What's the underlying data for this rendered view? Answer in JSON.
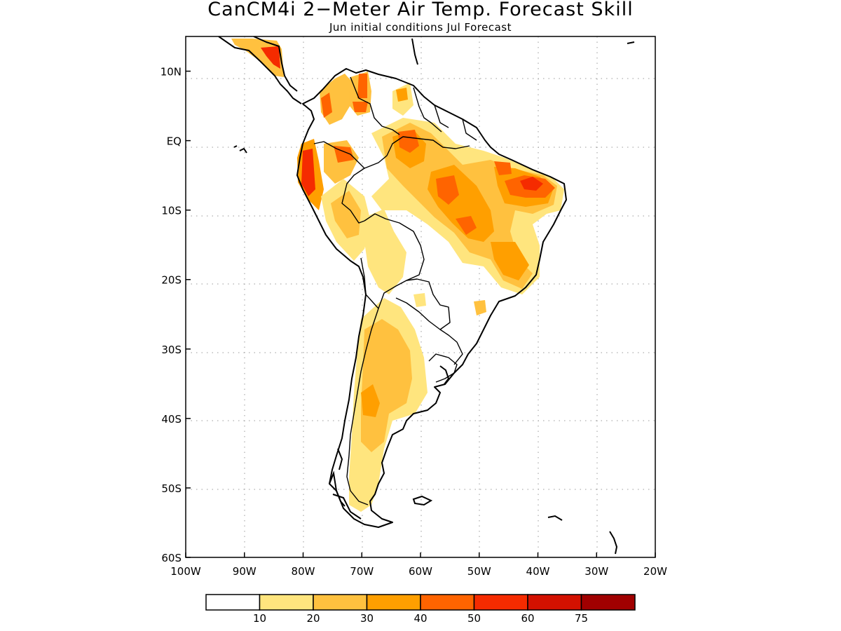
{
  "title": "CanCM4i 2−Meter Air Temp. Forecast Skill",
  "subtitle": "Jun initial conditions   Jul Forecast",
  "map": {
    "region": "South America",
    "lon_range": [
      -100,
      -20
    ],
    "lat_range": [
      -60,
      15
    ],
    "grid": true,
    "x_ticks": [
      {
        "value": -100,
        "label": "100W"
      },
      {
        "value": -90,
        "label": "90W"
      },
      {
        "value": -80,
        "label": "80W"
      },
      {
        "value": -70,
        "label": "70W"
      },
      {
        "value": -60,
        "label": "60W"
      },
      {
        "value": -50,
        "label": "50W"
      },
      {
        "value": -40,
        "label": "40W"
      },
      {
        "value": -30,
        "label": "30W"
      },
      {
        "value": -20,
        "label": "20W"
      }
    ],
    "y_ticks": [
      {
        "value": 10,
        "label": "10N"
      },
      {
        "value": 0,
        "label": "EQ"
      },
      {
        "value": -10,
        "label": "10S"
      },
      {
        "value": -20,
        "label": "20S"
      },
      {
        "value": -30,
        "label": "30S"
      },
      {
        "value": -40,
        "label": "40S"
      },
      {
        "value": -50,
        "label": "50S"
      },
      {
        "value": -60,
        "label": "60S"
      }
    ]
  },
  "colorbar": {
    "colors": [
      "#ffffff",
      "#ffe57e",
      "#ffc13f",
      "#ff9f00",
      "#ff6400",
      "#f52b00",
      "#d31100",
      "#a00000"
    ],
    "labels": [
      "10",
      "20",
      "30",
      "40",
      "50",
      "60",
      "75"
    ]
  }
}
